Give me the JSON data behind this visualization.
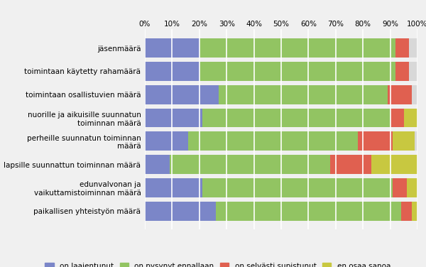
{
  "categories": [
    "jäsenmäärä",
    "toimintaan käytetty rahamäärä",
    "toimintaan osallistuvien määrä",
    "nuorille ja aikuisille suunnatun\ntoiminnan määrä",
    "perheille suunnatun toiminnan\nmäärä",
    "lapsille suunnattun toiminnan määrä",
    "edunvalvonan ja\nvaikuttamistoiminnan määrä",
    "paikallisen yhteistyön määrä"
  ],
  "series": {
    "on laajentunut": [
      20,
      20,
      27,
      21,
      16,
      9,
      21,
      26
    ],
    "on pysynyt ennallaan": [
      72,
      72,
      62,
      69,
      62,
      59,
      70,
      68
    ],
    "on selvästi supistunut": [
      5,
      5,
      9,
      5,
      13,
      15,
      5,
      4
    ],
    "en osaa sanoa": [
      0,
      0,
      0,
      5,
      8,
      17,
      5,
      2
    ]
  },
  "colors": {
    "on laajentunut": "#7b86c8",
    "on pysynyt ennallaan": "#92c462",
    "on selvästi supistunut": "#e06050",
    "en osaa sanoa": "#c8c840"
  },
  "legend_labels": [
    "on laajentunut",
    "on pysynyt ennallaan",
    "on selvästi supistunut",
    "en osaa sanoa"
  ],
  "figure_bg": "#f0f0f0",
  "axes_bg": "#f0f0f0",
  "bar_background": "#d8d8d8",
  "xlim": [
    0,
    100
  ],
  "xticks": [
    0,
    10,
    20,
    30,
    40,
    50,
    60,
    70,
    80,
    90,
    100
  ]
}
